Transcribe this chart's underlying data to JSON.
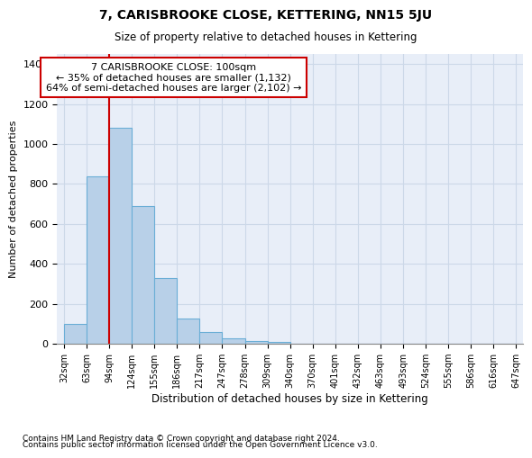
{
  "title": "7, CARISBROOKE CLOSE, KETTERING, NN15 5JU",
  "subtitle": "Size of property relative to detached houses in Kettering",
  "xlabel": "Distribution of detached houses by size in Kettering",
  "ylabel": "Number of detached properties",
  "bar_values": [
    100,
    840,
    1080,
    690,
    330,
    125,
    60,
    30,
    15,
    10,
    0,
    0,
    0,
    0,
    0,
    0,
    0,
    0,
    0,
    0
  ],
  "bin_labels": [
    "32sqm",
    "63sqm",
    "94sqm",
    "124sqm",
    "155sqm",
    "186sqm",
    "217sqm",
    "247sqm",
    "278sqm",
    "309sqm",
    "340sqm",
    "370sqm",
    "401sqm",
    "432sqm",
    "463sqm",
    "493sqm",
    "524sqm",
    "555sqm",
    "586sqm",
    "616sqm",
    "647sqm"
  ],
  "bar_color": "#b8d0e8",
  "bar_edge_color": "#6aaed6",
  "grid_color": "#ccd8e8",
  "bg_color": "#e8eef8",
  "vline_color": "#cc0000",
  "annotation_text": "7 CARISBROOKE CLOSE: 100sqm\n← 35% of detached houses are smaller (1,132)\n64% of semi-detached houses are larger (2,102) →",
  "annotation_box_color": "#ffffff",
  "annotation_box_edge": "#cc0000",
  "ylim": [
    0,
    1450
  ],
  "yticks": [
    0,
    200,
    400,
    600,
    800,
    1000,
    1200,
    1400
  ],
  "footer1": "Contains HM Land Registry data © Crown copyright and database right 2024.",
  "footer2": "Contains public sector information licensed under the Open Government Licence v3.0."
}
